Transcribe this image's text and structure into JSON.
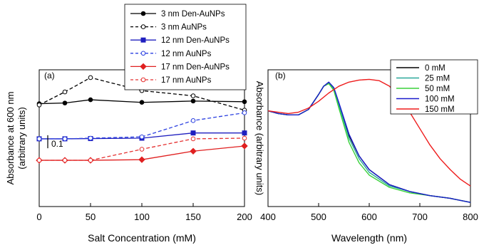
{
  "chart_data": [
    {
      "type": "line",
      "panel_label": "(a)",
      "xlabel": "Salt Concentration (mM)",
      "ylabel_line1": "Absorbance at 600 nm",
      "ylabel_line2": "(arbitrary units)",
      "xlim": [
        0,
        200
      ],
      "ylim": [
        -0.15,
        0.9
      ],
      "xticks": [
        "0",
        "50",
        "100",
        "150",
        "200"
      ],
      "scale_bar_label": "0.1",
      "scale_bar_value": 0.1,
      "legend_position": "top-center",
      "grid": false,
      "series": [
        {
          "name": "3 nm Den-AuNPs",
          "color": "#000000",
          "dashed": false,
          "marker": "circle",
          "filled": true,
          "x": [
            0,
            25,
            50,
            100,
            150,
            200
          ],
          "y": [
            0.64,
            0.645,
            0.67,
            0.65,
            0.66,
            0.655
          ]
        },
        {
          "name": "3 nm AuNPs",
          "color": "#000000",
          "dashed": true,
          "marker": "circle",
          "filled": false,
          "x": [
            0,
            25,
            50,
            100,
            150,
            200
          ],
          "y": [
            0.63,
            0.73,
            0.84,
            0.74,
            0.7,
            0.59
          ]
        },
        {
          "name": "12 nm Den-AuNPs",
          "color": "#1f1fbf",
          "dashed": false,
          "marker": "square",
          "filled": true,
          "x": [
            0,
            25,
            50,
            100,
            150,
            200
          ],
          "y": [
            0.37,
            0.37,
            0.372,
            0.375,
            0.415,
            0.415
          ]
        },
        {
          "name": "12 nm AuNPs",
          "color": "#2a3fe0",
          "dashed": true,
          "marker": "circle",
          "filled": false,
          "x": [
            0,
            25,
            50,
            100,
            150,
            200
          ],
          "y": [
            0.37,
            0.37,
            0.375,
            0.385,
            0.51,
            0.57
          ]
        },
        {
          "name": "17 nm Den-AuNPs",
          "color": "#e02020",
          "dashed": false,
          "marker": "diamond",
          "filled": true,
          "x": [
            0,
            25,
            50,
            100,
            150,
            200
          ],
          "y": [
            0.205,
            0.205,
            0.205,
            0.21,
            0.275,
            0.315
          ]
        },
        {
          "name": "17 nm AuNPs",
          "color": "#e53030",
          "dashed": true,
          "marker": "circle",
          "filled": false,
          "x": [
            0,
            25,
            50,
            100,
            150,
            200
          ],
          "y": [
            0.205,
            0.205,
            0.205,
            0.29,
            0.37,
            0.375
          ]
        }
      ]
    },
    {
      "type": "line",
      "panel_label": "(b)",
      "xlabel": "Wavelength (nm)",
      "ylabel": "Absorbance (arbitrary units)",
      "xlim": [
        400,
        800
      ],
      "ylim": [
        0,
        1
      ],
      "xticks": [
        "400",
        "500",
        "600",
        "700",
        "800"
      ],
      "legend_position": "top-right",
      "grid": false,
      "series": [
        {
          "name": "0 mM",
          "color": "#000000",
          "x": [
            400,
            420,
            440,
            460,
            480,
            500,
            510,
            520,
            530,
            540,
            560,
            580,
            600,
            640,
            680,
            720,
            760,
            800
          ],
          "y": [
            0.7,
            0.68,
            0.67,
            0.67,
            0.71,
            0.82,
            0.88,
            0.9,
            0.86,
            0.75,
            0.52,
            0.37,
            0.27,
            0.16,
            0.11,
            0.08,
            0.06,
            0.03
          ]
        },
        {
          "name": "25 mM",
          "color": "#2aa89a",
          "x": [
            400,
            420,
            440,
            460,
            480,
            500,
            510,
            520,
            530,
            540,
            560,
            580,
            600,
            640,
            680,
            720,
            760,
            800
          ],
          "y": [
            0.7,
            0.68,
            0.67,
            0.67,
            0.71,
            0.82,
            0.88,
            0.9,
            0.86,
            0.74,
            0.5,
            0.35,
            0.25,
            0.15,
            0.11,
            0.08,
            0.06,
            0.03
          ]
        },
        {
          "name": "50 mM",
          "color": "#3ad13a",
          "x": [
            400,
            420,
            440,
            460,
            480,
            500,
            510,
            520,
            530,
            540,
            560,
            580,
            600,
            640,
            680,
            720,
            760,
            800
          ],
          "y": [
            0.7,
            0.68,
            0.67,
            0.67,
            0.71,
            0.82,
            0.88,
            0.9,
            0.85,
            0.72,
            0.47,
            0.32,
            0.23,
            0.14,
            0.1,
            0.08,
            0.06,
            0.03
          ]
        },
        {
          "name": "100 mM",
          "color": "#1a1acc",
          "x": [
            400,
            420,
            440,
            460,
            480,
            500,
            510,
            520,
            530,
            540,
            560,
            580,
            600,
            640,
            680,
            720,
            760,
            800
          ],
          "y": [
            0.7,
            0.68,
            0.67,
            0.67,
            0.71,
            0.82,
            0.88,
            0.91,
            0.87,
            0.76,
            0.53,
            0.37,
            0.27,
            0.16,
            0.11,
            0.08,
            0.06,
            0.03
          ]
        },
        {
          "name": "150 mM",
          "color": "#ee1c1c",
          "x": [
            400,
            420,
            440,
            460,
            480,
            500,
            520,
            540,
            560,
            580,
            600,
            620,
            640,
            660,
            680,
            700,
            720,
            740,
            760,
            780,
            800
          ],
          "y": [
            0.7,
            0.69,
            0.68,
            0.69,
            0.72,
            0.77,
            0.83,
            0.88,
            0.91,
            0.925,
            0.93,
            0.92,
            0.88,
            0.8,
            0.69,
            0.57,
            0.45,
            0.35,
            0.27,
            0.2,
            0.15
          ]
        }
      ]
    }
  ]
}
